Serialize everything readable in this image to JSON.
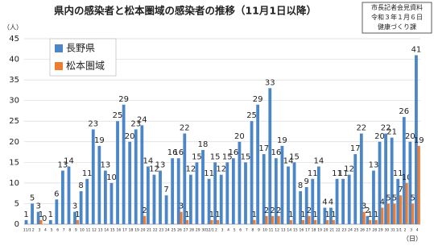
{
  "chart_data": {
    "type": "bar",
    "title": "県内の感染者と松本圏域の感染者の推移（11月1日以降）",
    "note_lines": [
      "市長記者会見資料",
      "令和３年１月６日",
      "健康づくり課"
    ],
    "y_unit": "（人）",
    "x_unit": "（日）",
    "categories": [
      "11/1",
      "2",
      "3",
      "4",
      "5",
      "6",
      "7",
      "8",
      "9",
      "10",
      "11",
      "12",
      "13",
      "14",
      "15",
      "16",
      "17",
      "18",
      "19",
      "20",
      "21",
      "22",
      "23",
      "24",
      "25",
      "26",
      "27",
      "28",
      "29",
      "30",
      "12/1",
      "2",
      "3",
      "4",
      "5",
      "6",
      "7",
      "8",
      "9",
      "10",
      "11",
      "12",
      "13",
      "14",
      "15",
      "16",
      "17",
      "18",
      "19",
      "20",
      "21",
      "22",
      "23",
      "24",
      "25",
      "26",
      "27",
      "28",
      "29",
      "30",
      "31",
      "1/1",
      "2",
      "3",
      "4"
    ],
    "series": [
      {
        "name": "長野県",
        "color": "#4a86c8",
        "values": [
          1,
          5,
          3,
          0,
          1,
          6,
          13,
          14,
          3,
          8,
          11,
          23,
          19,
          13,
          10,
          25,
          29,
          20,
          23,
          24,
          14,
          12,
          13,
          7,
          16,
          16,
          22,
          12,
          15,
          18,
          11,
          15,
          12,
          15,
          16,
          20,
          15,
          25,
          29,
          17,
          33,
          16,
          19,
          14,
          15,
          8,
          9,
          11,
          14,
          4,
          4,
          11,
          11,
          12,
          17,
          22,
          2,
          13,
          20,
          22,
          21,
          11,
          26,
          20,
          41
        ]
      },
      {
        "name": "松本圏域",
        "color": "#ed7d31",
        "values": [
          0,
          0,
          1,
          0,
          0,
          0,
          0,
          0,
          1,
          0,
          0,
          0,
          0,
          0,
          0,
          0,
          0,
          0,
          0,
          2,
          0,
          0,
          0,
          0,
          0,
          3,
          1,
          0,
          0,
          0,
          1,
          1,
          0,
          0,
          0,
          0,
          0,
          1,
          0,
          2,
          2,
          2,
          0,
          1,
          0,
          1,
          2,
          1,
          0,
          1,
          1,
          0,
          0,
          0,
          0,
          3,
          1,
          1,
          4,
          5,
          5,
          7,
          10,
          5,
          19
        ]
      }
    ],
    "ylim": [
      0,
      45
    ],
    "yticks": [
      0,
      5,
      10,
      15,
      20,
      25,
      30,
      35,
      40,
      45
    ],
    "grid": true
  }
}
